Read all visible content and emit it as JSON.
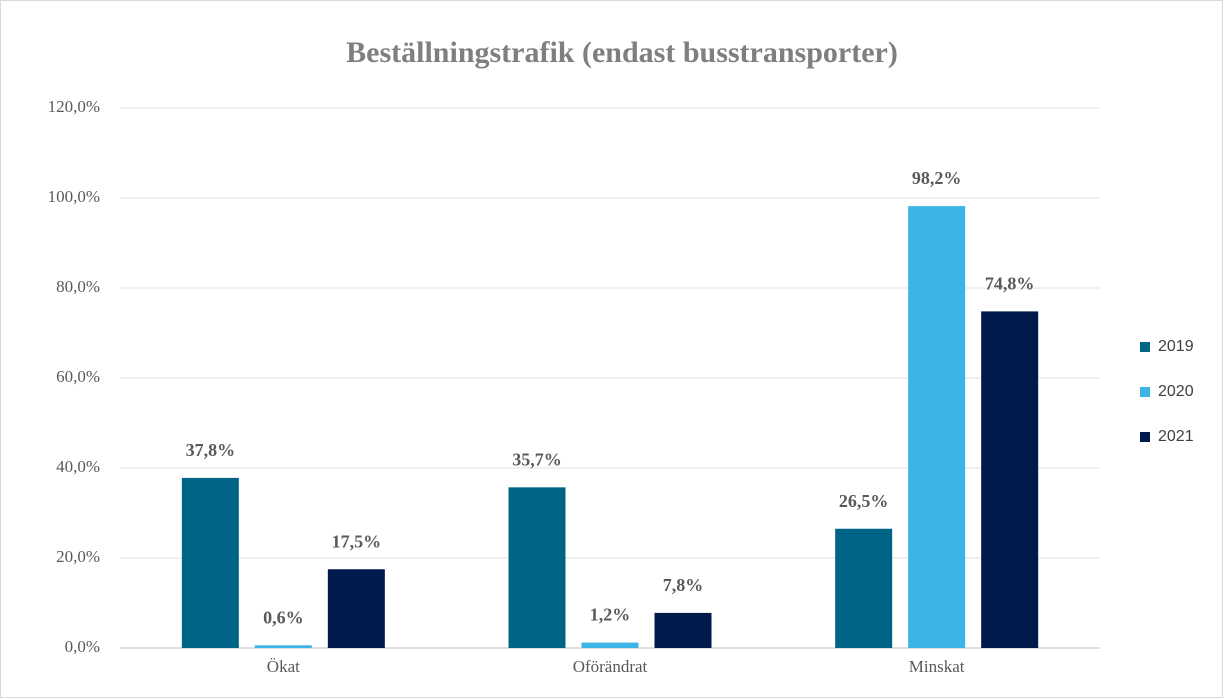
{
  "chart_data": {
    "type": "bar",
    "title": "Beställningstrafik (endast busstransporter)",
    "categories": [
      "Ökat",
      "Oförändrat",
      "Minskat"
    ],
    "series": [
      {
        "name": "2019",
        "color": "#006487",
        "values": [
          37.8,
          35.7,
          26.5
        ],
        "value_labels": [
          "37,8%",
          "35,7%",
          "26,5%"
        ]
      },
      {
        "name": "2020",
        "color": "#3cb4e5",
        "values": [
          0.6,
          1.2,
          98.2
        ],
        "value_labels": [
          "0,6%",
          "1,2%",
          "98,2%"
        ]
      },
      {
        "name": "2021",
        "color": "#001a4b",
        "values": [
          17.5,
          7.8,
          74.8
        ],
        "value_labels": [
          "17,5%",
          "7,8%",
          "74,8%"
        ]
      }
    ],
    "ylim": [
      0,
      120
    ],
    "yticks": [
      {
        "value": 0,
        "label": "0,0%"
      },
      {
        "value": 20,
        "label": "20,0%"
      },
      {
        "value": 40,
        "label": "40,0%"
      },
      {
        "value": 60,
        "label": "60,0%"
      },
      {
        "value": 80,
        "label": "80,0%"
      },
      {
        "value": 100,
        "label": "100,0%"
      },
      {
        "value": 120,
        "label": "120,0%"
      }
    ],
    "grid": true,
    "legend": "right"
  }
}
